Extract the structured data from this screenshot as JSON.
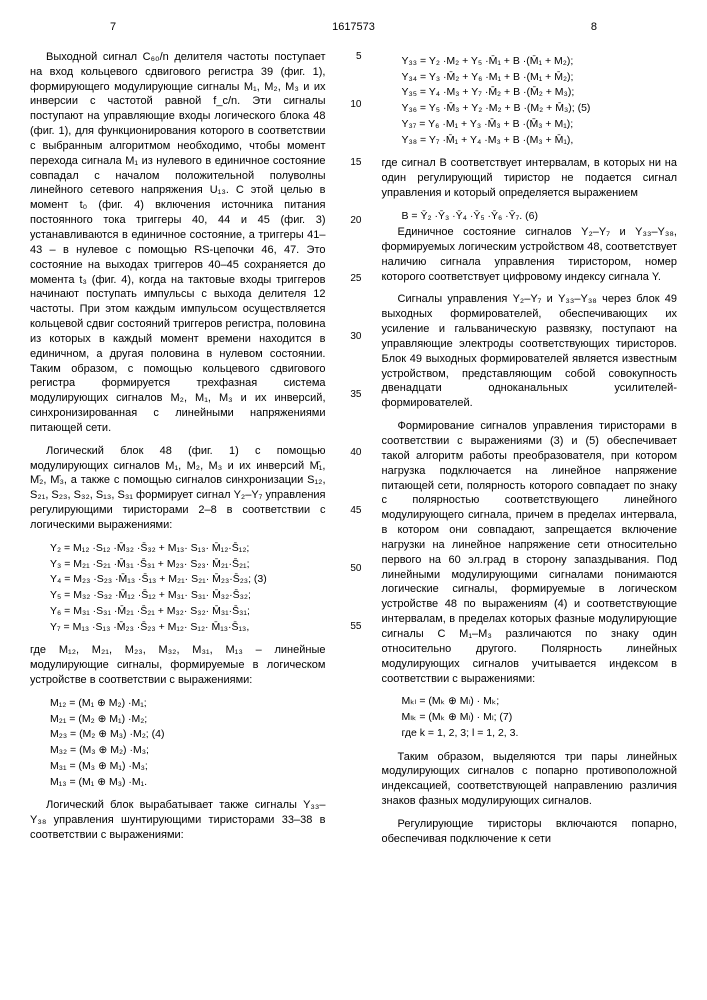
{
  "header": {
    "page_left": "7",
    "doc_number": "1617573",
    "page_right": "8"
  },
  "linenums": [
    "5",
    "10",
    "15",
    "20",
    "25",
    "30",
    "35",
    "40",
    "45",
    "50",
    "55"
  ],
  "left": {
    "p1": "Выходной сигнал С₆₀/n делителя частоты поступает на вход кольцевого сдвигового регистра 39 (фиг. 1), формирующего модулирующие сигналы М₁, М₂, М₃ и их инверсии с частотой равной f_c/n. Эти сигналы поступают на управляющие входы логического блока 48 (фиг. 1), для функционирования которого в соответствии с выбранным алгоритмом необходимо, чтобы момент перехода сигнала М₁ из нулевого в единичное состояние совпадал с началом положительной полуволны линейного сетевого напряжения U₁₃. С этой целью в момент t₀ (фиг. 4) включения источника питания постоянного тока триггеры 40, 44 и 45 (фиг. 3) устанавливаются в единичное состояние, а триггеры 41–43 – в нулевое с помощью RS-цепочки 46, 47. Это состояние на выходах триггеров 40–45 сохраняется до момента t₃ (фиг. 4), когда на тактовые входы триггеров начинают поступать импульсы с выхода делителя 12 частоты. При этом каждым импульсом осуществляется кольцевой сдвиг состояний триггеров регистра, половина из которых в каждый момент времени находится в единичном, а другая половина в нулевом состоянии. Таким образом, с помощью кольцевого сдвигового регистра формируется трехфазная система модулирующих сигналов М₂, М₁, М₃ и их инверсий, синхронизированная с линейными напряжениями питающей сети.",
    "p2": "Логический блок 48 (фиг. 1) с помощью модулирующих сигналов М₁, М₂, М₃ и их инверсий М̄₁, М̄₂, М̄₃, а также с помощью сигналов синхронизации S₁₂, S₂₁, S₂₃, S₃₂, S₁₃, S₃₁ формирует сигнал Y₂–Y₇ управления регулирующими тиристорами 2–8 в соответствии с логическими выражениями:",
    "eq3": [
      "Y₂ = M₁₂ ·S₁₂ ·M̄₃₂ ·S̄₃₂ + M₁₃· S₁₃· M̄₁₂·S̄₁₂;",
      "Y₃ = M₂₁ ·S₂₁ ·M̄₃₁ ·S̄₃₁ + M₂₃· S₂₃· M̄₂₁·S̄₂₁;",
      "Y₄ = M₂₃ ·S₂₃ ·M̄₁₃ ·S̄₁₃ + M₂₁· S₂₁· M̄₂₃·S̄₂₃;   (3)",
      "Y₅ = M₃₂ ·S₃₂ ·M̄₁₂ ·S̄₁₂ + M₃₁· S₃₁· M̄₃₂·S̄₃₂;",
      "Y₆ = M₃₁ ·S₃₁ ·M̄₂₁ ·S̄₂₁ + M₃₂· S₃₂· M̄₃₁·S̄₃₁;",
      "Y₇ = M₁₃ ·S₁₃ ·M̄₂₃ ·S̄₂₃ + M₁₂· S₁₂· M̄₁₃·S̄₁₃,"
    ],
    "p3": "где М₁₂, М₂₁, М₂₃, М₃₂, М₃₁, М₁₃ – линейные модулирующие сигналы, формируемые в логическом устройстве в соответствии с выражениями:",
    "eq4": [
      "M₁₂ = (M₁ ⊕ M₂) ·M₁;",
      "M₂₁ = (M₂ ⊕ M₁) ·M₂;",
      "M₂₃ = (M₂ ⊕ M₃) ·M₂;        (4)",
      "M₃₂ = (M₃ ⊕ M₂) ·M₃;",
      "M₃₁ = (M₃ ⊕ M₁) ·M₃;",
      "M₁₃ = (M₁ ⊕ M₃) ·M₁."
    ],
    "p4": "Логический блок вырабатывает также сигналы Y₃₃–Y₃₈ управления шунтирующими тиристорами 33–38 в соответствии с выражениями:"
  },
  "right": {
    "eq5": [
      "Y₃₃ = Y₂ ·M₂ + Y₅ ·M̄₁ + B ·(M̄₁ + M₂);",
      "Y₃₄ = Y₃ ·M̄₂ + Y₆ ·M₁ + B ·(M₁ + M̄₂);",
      "Y₃₅ = Y₄ ·M₃ + Y₇ ·M̄₂ + B ·(M̄₂ + M₃);",
      "Y₃₆ = Y₅ ·M̄₃ + Y₂ ·M₂ + B ·(M₂ + M̄₃);   (5)",
      "Y₃₇ = Y₆ ·M₁ + Y₃ ·M̄₃ + B ·(M̄₃ + M₁);",
      "Y₃₈ = Y₇ ·M̄₁ + Y₄ ·M₃ + B ·(M₃ + M̄₁),"
    ],
    "p1": "где сигнал В соответствует интервалам, в которых ни на один регулирующий тиристор не подается сигнал управления и который определяется выражением",
    "eq6": "B = Ȳ₂ ·Ȳ₃ ·Ȳ₄ ·Ȳ₅ ·Ȳ₆ ·Ȳ₇.              (6)",
    "p2": "Единичное состояние сигналов Y₂–Y₇ и Y₃₃–Y₃₈, формируемых логическим устройством 48, соответствует наличию сигнала управления тиристором, номер которого соответствует цифровому индексу сигнала Y.",
    "p3": "Сигналы управления Y₂–Y₇ и Y₃₃–Y₃₈ через блок 49 выходных формирователей, обеспечивающих их усиление и гальваническую развязку, поступают на управляющие электроды соответствующих тиристоров. Блок 49 выходных формирователей является известным устройством, представляющим собой совокупность двенадцати одноканальных усилителей-формирователей.",
    "p4": "Формирование сигналов управления тиристорами в соответствии с выражениями (3) и (5) обеспечивает такой алгоритм работы преобразователя, при котором нагрузка подключается на линейное напряжение питающей сети, полярность которого совпадает по знаку с полярностью соответствующего линейного модулирующего сигнала, причем в пределах интервала, в котором они совпадают, запрещается включение нагрузки на линейное напряжение сети относительно первого на 60 эл.град в сторону запаздывания. Под линейными модулирующими сигналами понимаются логические сигналы, формируемые в логическом устройстве 48 по выражениям (4) и соответствующие интервалам, в пределах которых фазные модулирующие сигналы С М₁–М₃ различаются по знаку один относительно другого. Полярность линейных модулирующих сигналов учитывается индексом в соответствии с выражениями:",
    "eq7": [
      "Mₖₗ = (Mₖ ⊕ Mₗ) · Mₖ;",
      "Mₗₖ = (Mₖ ⊕ Mₗ) · Mₗ;                    (7)",
      "где k = 1, 2, 3;  l = 1, 2, 3."
    ],
    "p5": "Таким образом, выделяются три пары линейных модулирующих сигналов с попарно противоположной индексацией, соответствующей направлению различия знаков фазных модулирующих сигналов.",
    "p6": "Регулирующие тиристоры включаются попарно, обеспечивая подключение к сети"
  }
}
